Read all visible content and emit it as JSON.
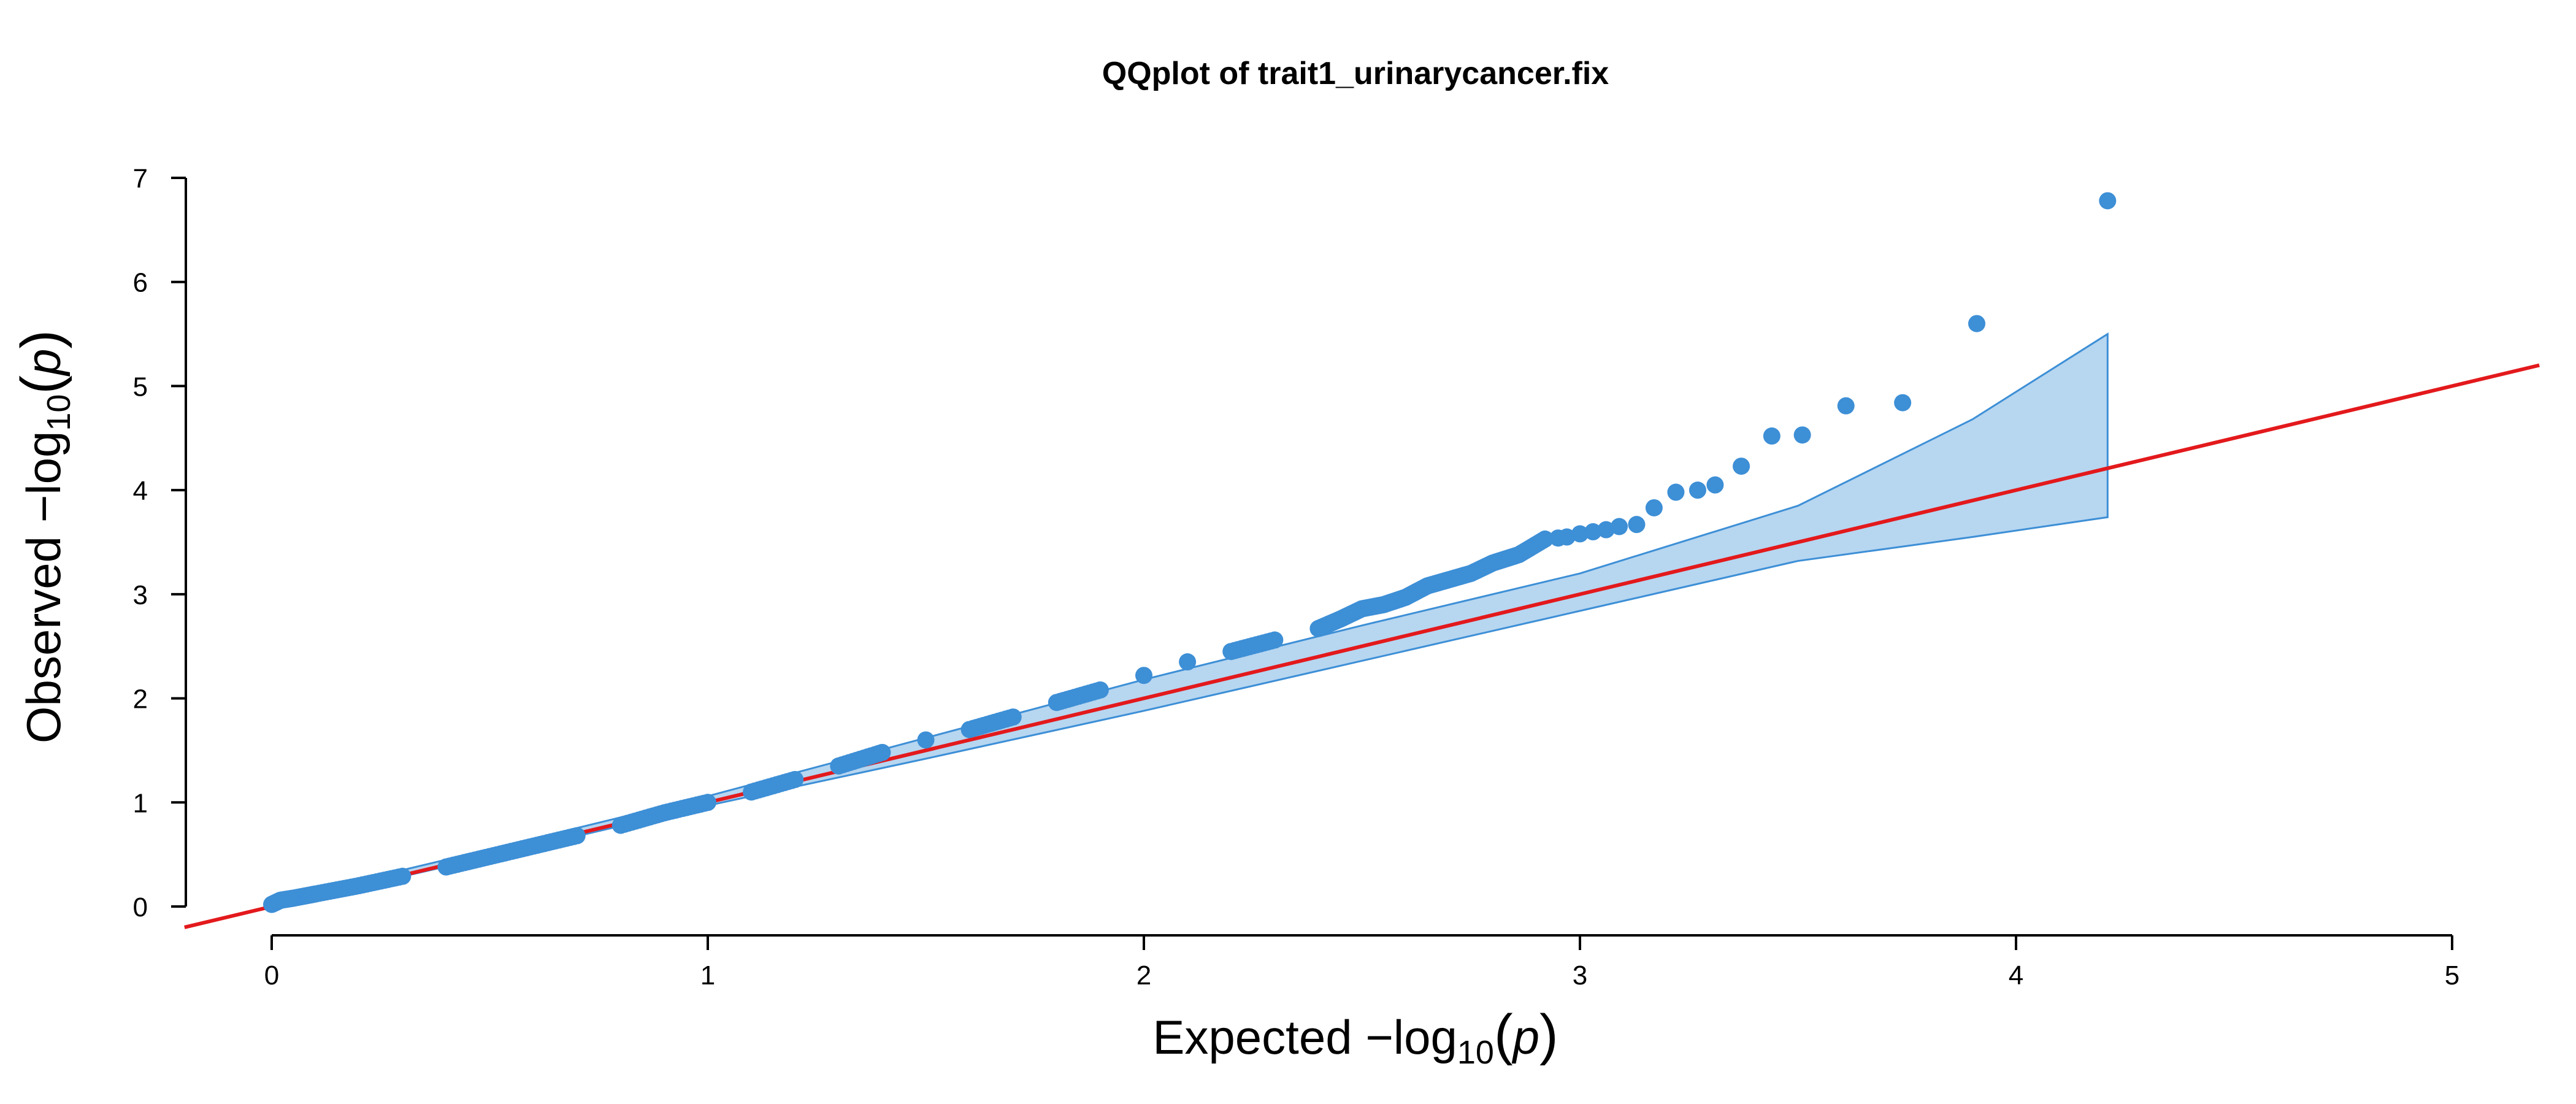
{
  "chart_data": {
    "type": "scatter",
    "title": "QQplot of trait1_urinarycancer.fix",
    "xlabel": {
      "prefix": "Expected  −log",
      "subscript": "10",
      "open": "(",
      "var": "p",
      "close": ")"
    },
    "ylabel": {
      "prefix": "Observed  −log",
      "subscript": "10",
      "open": "(",
      "var": "p",
      "close": ")"
    },
    "xlim": [
      0,
      5
    ],
    "ylim": [
      0,
      7
    ],
    "xticks": [
      "0",
      "1",
      "2",
      "3",
      "4",
      "5"
    ],
    "yticks": [
      "0",
      "1",
      "2",
      "3",
      "4",
      "5",
      "6",
      "7"
    ],
    "grid": false,
    "colors": {
      "points": "#3d8fd6",
      "reference_line": "#e3191c",
      "band_fill": "#b7d6f0",
      "band_edge": "#3d8fd6"
    },
    "reference_line": {
      "type": "y=x"
    },
    "confidence_band": {
      "x": [
        0,
        0.5,
        1.0,
        1.5,
        2.0,
        2.5,
        3.0,
        3.5,
        3.9,
        4.21
      ],
      "upper": [
        0.05,
        0.55,
        1.06,
        1.62,
        2.18,
        2.7,
        3.2,
        3.85,
        4.68,
        5.5
      ],
      "lower": [
        0.0,
        0.48,
        0.97,
        1.42,
        1.88,
        2.36,
        2.84,
        3.32,
        3.55,
        3.74
      ]
    },
    "series": [
      {
        "points": [
          [
            0.0,
            0.02
          ],
          [
            0.02,
            0.06
          ],
          [
            0.05,
            0.08
          ],
          [
            0.1,
            0.12
          ],
          [
            0.2,
            0.2
          ],
          [
            0.3,
            0.29
          ],
          [
            0.4,
            0.38
          ],
          [
            0.5,
            0.48
          ],
          [
            0.6,
            0.58
          ],
          [
            0.7,
            0.68
          ],
          [
            0.8,
            0.78
          ],
          [
            0.9,
            0.9
          ],
          [
            1.0,
            1.0
          ],
          [
            1.1,
            1.1
          ],
          [
            1.2,
            1.22
          ],
          [
            1.3,
            1.35
          ],
          [
            1.4,
            1.48
          ],
          [
            1.5,
            1.6
          ],
          [
            1.6,
            1.7
          ],
          [
            1.7,
            1.82
          ],
          [
            1.8,
            1.96
          ],
          [
            1.9,
            2.08
          ],
          [
            2.0,
            2.22
          ],
          [
            2.1,
            2.35
          ],
          [
            2.2,
            2.45
          ],
          [
            2.3,
            2.56
          ],
          [
            2.4,
            2.67
          ],
          [
            2.45,
            2.76
          ],
          [
            2.5,
            2.86
          ],
          [
            2.55,
            2.9
          ],
          [
            2.6,
            2.97
          ],
          [
            2.65,
            3.08
          ],
          [
            2.7,
            3.14
          ],
          [
            2.75,
            3.2
          ],
          [
            2.8,
            3.3
          ],
          [
            2.86,
            3.38
          ],
          [
            2.92,
            3.53
          ],
          [
            2.95,
            3.54
          ],
          [
            2.97,
            3.55
          ],
          [
            3.0,
            3.58
          ],
          [
            3.03,
            3.6
          ],
          [
            3.06,
            3.62
          ],
          [
            3.09,
            3.65
          ],
          [
            3.13,
            3.67
          ],
          [
            3.17,
            3.83
          ],
          [
            3.22,
            3.98
          ],
          [
            3.27,
            4.0
          ],
          [
            3.31,
            4.05
          ],
          [
            3.37,
            4.23
          ],
          [
            3.44,
            4.52
          ],
          [
            3.51,
            4.53
          ],
          [
            3.61,
            4.81
          ],
          [
            3.74,
            4.84
          ],
          [
            3.91,
            5.6
          ],
          [
            4.21,
            6.78
          ]
        ]
      }
    ]
  }
}
